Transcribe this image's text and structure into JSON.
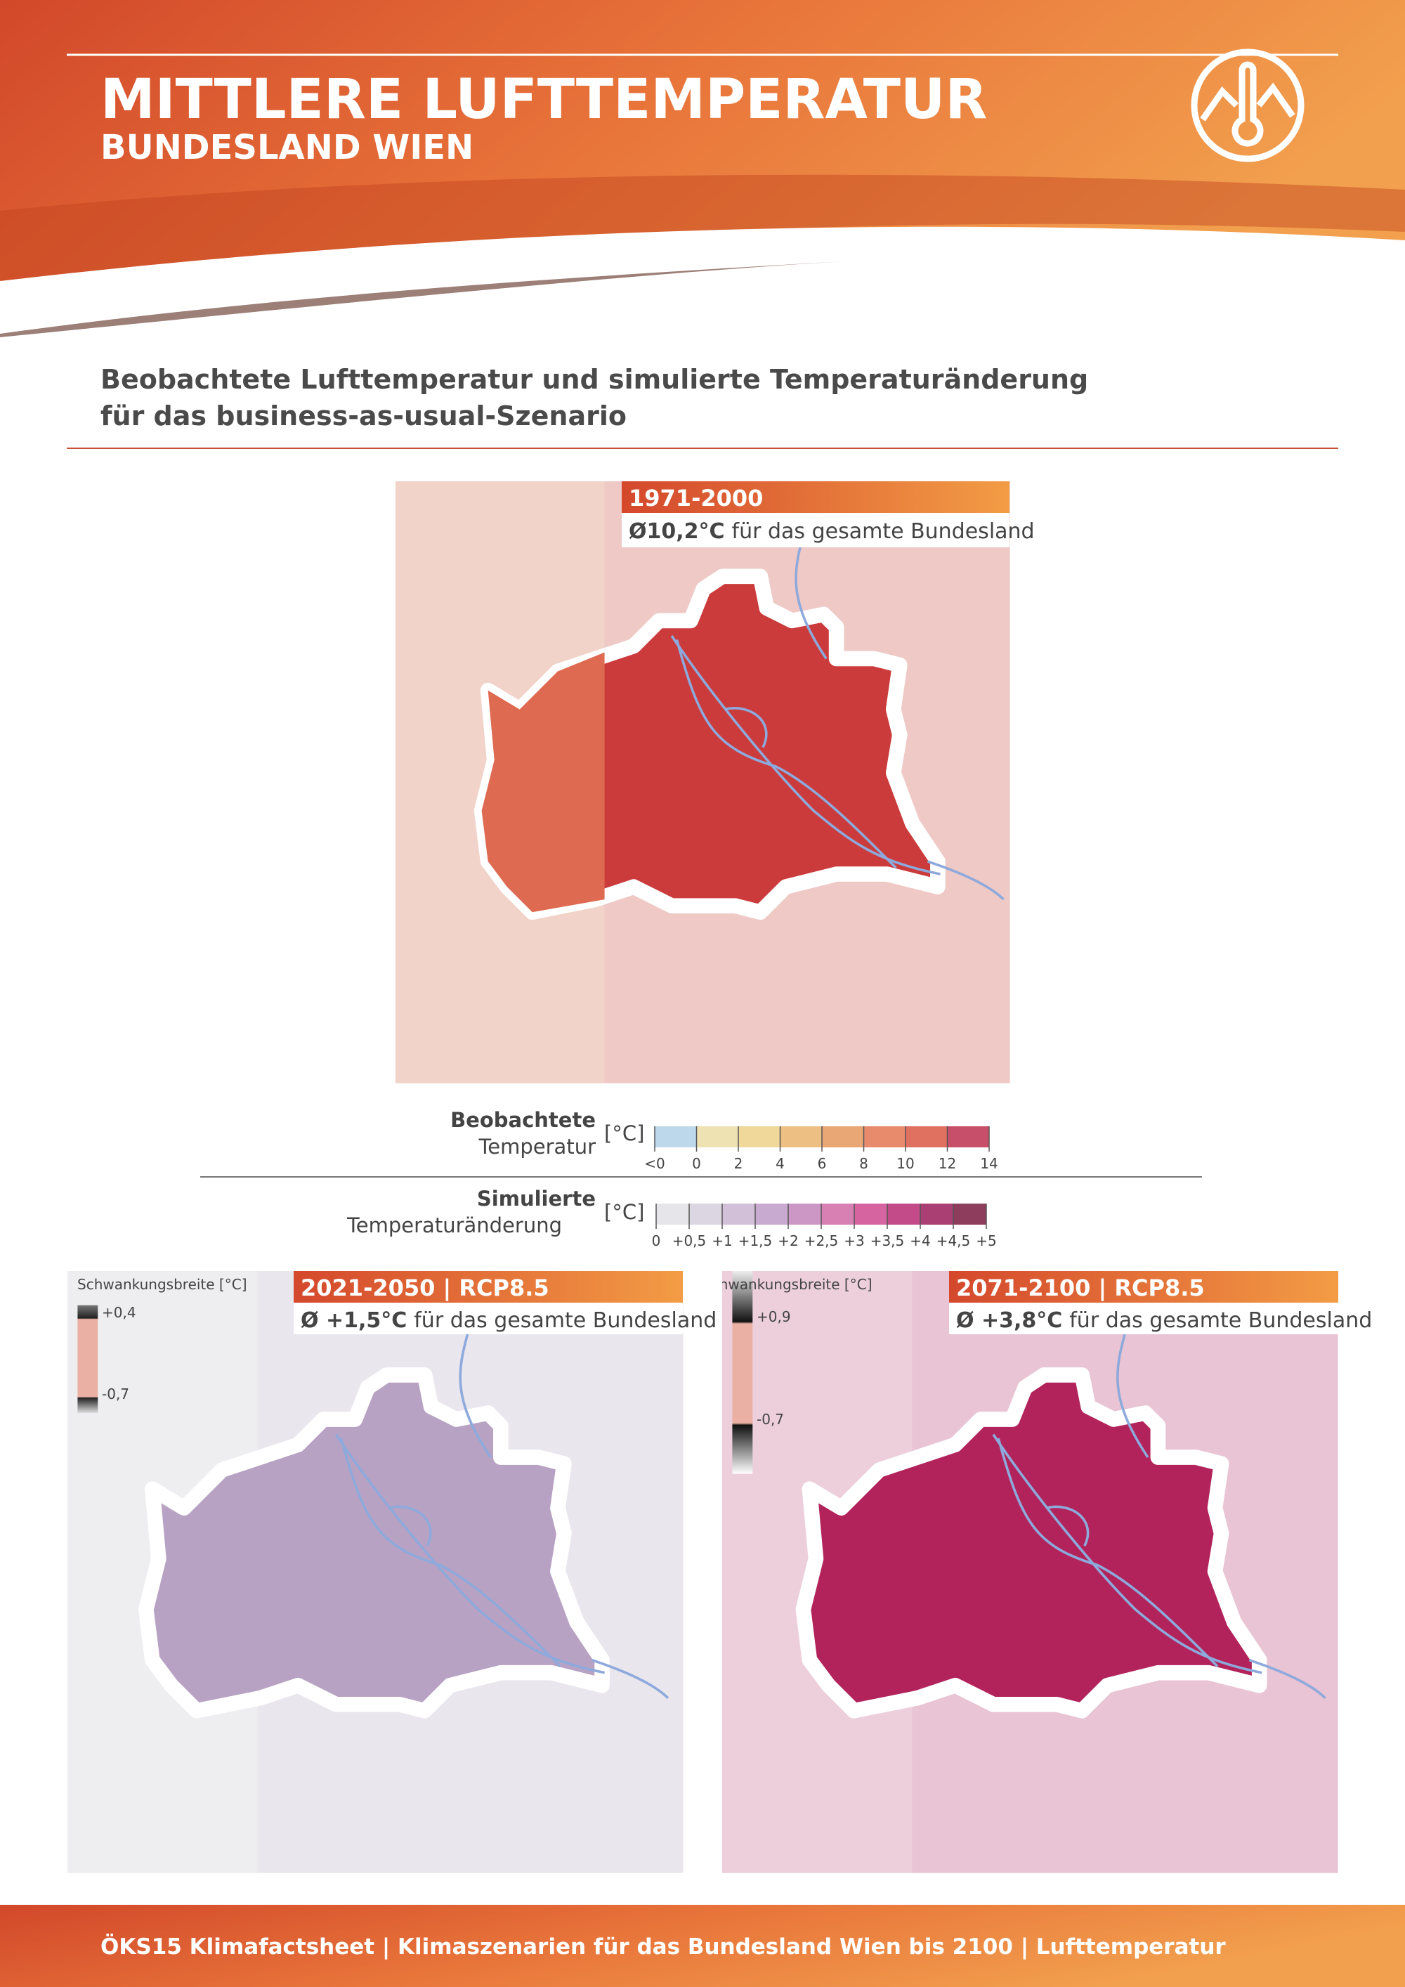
{
  "header": {
    "title": "MITTLERE LUFTTEMPERATUR",
    "subtitle": "BUNDESLAND WIEN"
  },
  "section": {
    "heading": [
      "Beobachtete Lufttemperatur und simulierte Temperaturänderung",
      "für das business-as-usual-Szenario"
    ]
  },
  "maps": [
    {
      "period": "1971-2000",
      "average": "Ø10,2°C",
      "average_text": "für das gesamte Bundesland"
    },
    {
      "period": "2021-2050 | RCP8.5",
      "average": "Ø +1,5°C",
      "average_text": "für das gesamte Bundesland",
      "range": {
        "title": "Schwankungsbreite [°C]",
        "upper": "+0,4",
        "lower": "-0,7"
      }
    },
    {
      "period": "2071-2100 | RCP8.5",
      "average": "Ø +3,8°C",
      "average_text": "für das gesamte Bundesland",
      "range": {
        "title": "Schwankungsbreite [°C]",
        "upper": "+0,9",
        "lower": "-0,7"
      }
    }
  ],
  "legends": {
    "observed": {
      "title": "Beobachtete",
      "subtitle": "Temperatur",
      "unit": "[°C]",
      "labels": [
        "<0",
        "0",
        "2",
        "4",
        "6",
        "8",
        "10",
        "12",
        "14"
      ]
    },
    "simulated": {
      "title": "Simulierte",
      "subtitle": "Temperaturänderung",
      "unit": "[°C]",
      "labels": [
        "0",
        "+0,5",
        "+1",
        "+1,5",
        "+2",
        "+2,5",
        "+3",
        "+3,5",
        "+4",
        "+4,5",
        "+5"
      ]
    }
  },
  "footer": {
    "text": "ÖKS15 Klimafactsheet | Klimaszenarien für das Bundesland Wien bis 2100 | Lufttemperatur"
  }
}
